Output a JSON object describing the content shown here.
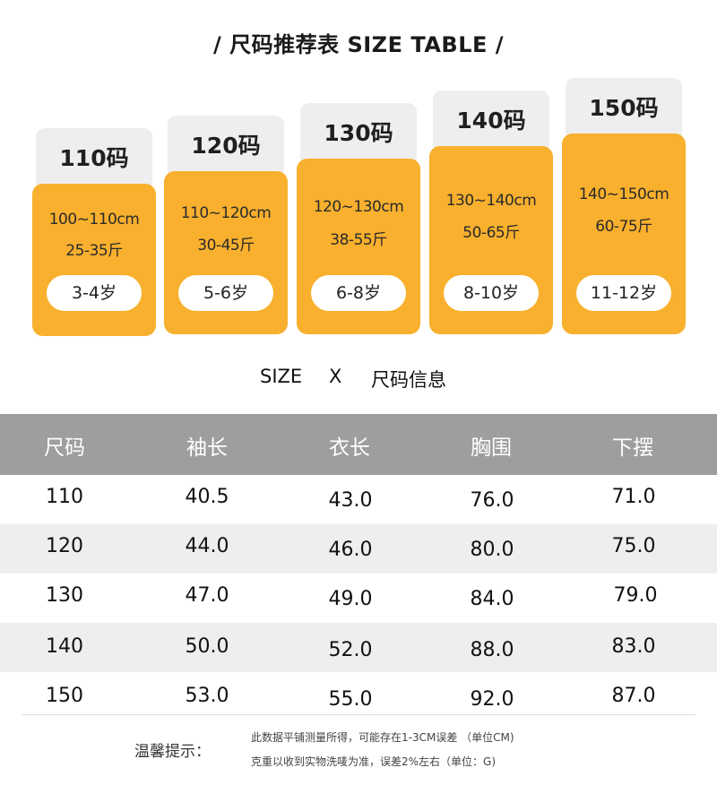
{
  "title": "/ 尺码推荐表 SIZE TABLE /",
  "cards": [
    {
      "size": "110码",
      "height": "100~110cm",
      "weight": "25-35斤",
      "age": "3-4岁"
    },
    {
      "size": "120码",
      "height": "110~120cm",
      "weight": "30-45斤",
      "age": "5-6岁"
    },
    {
      "size": "130码",
      "height": "120~130cm",
      "weight": "38-55斤",
      "age": "6-8岁"
    },
    {
      "size": "140码",
      "height": "130~140cm",
      "weight": "50-65斤",
      "age": "8-10岁"
    },
    {
      "size": "150码",
      "height": "140~150cm",
      "weight": "60-75斤",
      "age": "11-12岁"
    }
  ],
  "subtitle": {
    "left": "SIZE",
    "mid": "X",
    "right": "尺码信息"
  },
  "table": {
    "headers": [
      "尺码",
      "袖长",
      "衣长",
      "胸围",
      "下摆"
    ],
    "rows": [
      [
        "110",
        "40.5",
        "43.0",
        "76.0",
        "71.0"
      ],
      [
        "120",
        "44.0",
        "46.0",
        "80.0",
        "75.0"
      ],
      [
        "130",
        "47.0",
        "49.0",
        "84.0",
        "79.0"
      ],
      [
        "140",
        "50.0",
        "52.0",
        "88.0",
        "83.0"
      ],
      [
        "150",
        "53.0",
        "55.0",
        "92.0",
        "87.0"
      ]
    ]
  },
  "note": {
    "label": "温馨提示：",
    "lines": [
      "此数据平铺测量所得，可能存在1-3CM误差 （单位CM)",
      "克重以收到实物洗唛为准，误差2%左右（单位：G)"
    ]
  },
  "colors": {
    "accent": "#f8b02e",
    "header_gray": "#9e9e9e",
    "card_head": "#eeeeee",
    "row_alt": "#eeeeee"
  }
}
